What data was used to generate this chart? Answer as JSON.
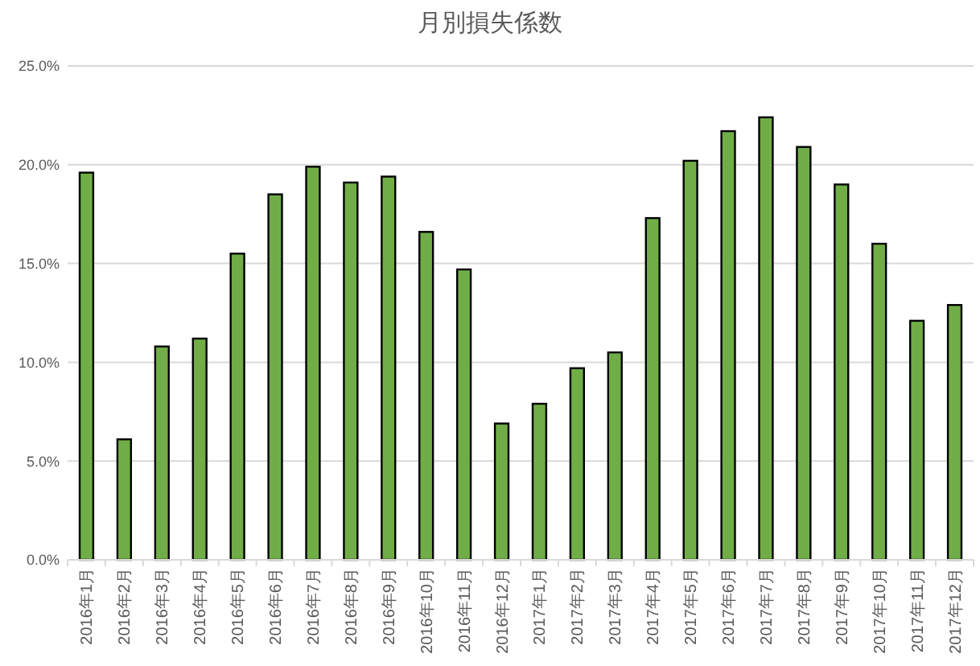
{
  "chart_data": {
    "type": "bar",
    "title": "月別損失係数",
    "categories": [
      "2016年1月",
      "2016年2月",
      "2016年3月",
      "2016年4月",
      "2016年5月",
      "2016年6月",
      "2016年7月",
      "2016年8月",
      "2016年9月",
      "2016年10月",
      "2016年11月",
      "2016年12月",
      "2017年1月",
      "2017年2月",
      "2017年3月",
      "2017年4月",
      "2017年5月",
      "2017年6月",
      "2017年7月",
      "2017年8月",
      "2017年9月",
      "2017年10月",
      "2017年11月",
      "2017年12月"
    ],
    "values": [
      19.6,
      6.1,
      10.8,
      11.2,
      15.5,
      18.5,
      19.9,
      19.1,
      19.4,
      16.6,
      14.7,
      6.9,
      7.9,
      9.7,
      10.5,
      17.3,
      20.2,
      21.7,
      22.4,
      20.9,
      19.0,
      16.0,
      12.1,
      12.9
    ],
    "color": "#70ad47",
    "ylim": [
      0,
      25
    ],
    "yticks": [
      {
        "value": 0,
        "label": "0.0%"
      },
      {
        "value": 5,
        "label": "5.0%"
      },
      {
        "value": 10,
        "label": "10.0%"
      },
      {
        "value": 15,
        "label": "15.0%"
      },
      {
        "value": 20,
        "label": "20.0%"
      },
      {
        "value": 25,
        "label": "25.0%"
      }
    ],
    "grid": "y"
  }
}
